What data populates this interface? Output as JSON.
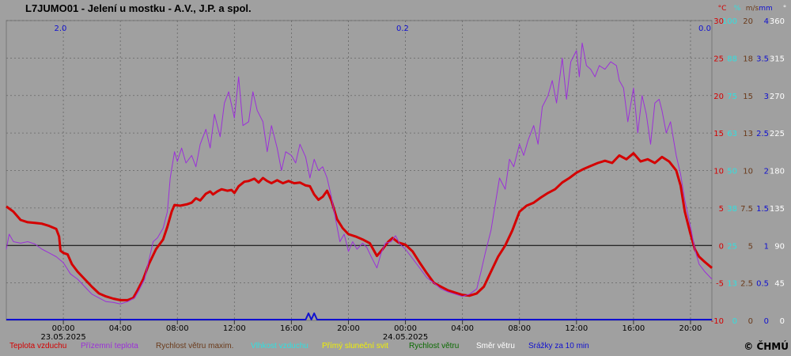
{
  "title": "L7JUMO01 - Jelení u mostku - A.V., J.P. a spol.",
  "credit": "© ČHMÚ",
  "colors": {
    "background": "#a0a0a0",
    "grid": "#666666",
    "zero_line": "#000000",
    "temperature": "#d40000",
    "ground_temperature": "#9b30d8",
    "wind_max": "#6a3a1a",
    "humidity": "#30e0e0",
    "sunshine": "#f0f000",
    "wind_speed": "#0a6a00",
    "wind_dir": "#ffffff",
    "precip": "#1010d0"
  },
  "chart_data": {
    "type": "line",
    "title": "L7JUMO01 - Jelení u mostku - A.V., J.P. a spol.",
    "x_axis": {
      "tick_labels": [
        "00:00",
        "04:00",
        "08:00",
        "12:00",
        "16:00",
        "20:00",
        "00:00",
        "04:00",
        "08:00",
        "12:00",
        "16:00",
        "20:00"
      ],
      "tick_hours": [
        0,
        4,
        8,
        12,
        16,
        20,
        24,
        28,
        32,
        36,
        40,
        44
      ],
      "date_labels": [
        {
          "hour": 0,
          "text": "23.05.2025"
        },
        {
          "hour": 24,
          "text": "24.05.2025"
        }
      ],
      "range_hours": [
        -4,
        45.5
      ]
    },
    "y_axes": [
      {
        "unit": "°C",
        "color": "#d40000",
        "ticks": [
          30,
          25,
          20,
          15,
          10,
          5,
          0,
          -5,
          -10
        ]
      },
      {
        "unit": "%",
        "color": "#30e0e0",
        "ticks": [
          100,
          88,
          75,
          63,
          50,
          38,
          25,
          13,
          0
        ]
      },
      {
        "unit": "m/s",
        "color": "#6a3a1a",
        "ticks": [
          20,
          18,
          15,
          13,
          10,
          7.5,
          5,
          2.5,
          0
        ]
      },
      {
        "unit": "mm",
        "color": "#1010d0",
        "ticks": [
          4,
          3.5,
          3,
          2.5,
          2,
          1.5,
          1,
          0.5,
          0
        ]
      },
      {
        "unit": "°",
        "color": "#ffffff",
        "ticks": [
          360,
          315,
          270,
          225,
          180,
          135,
          90,
          45,
          0
        ]
      }
    ],
    "ylim": [
      -10,
      30
    ],
    "precip_totals": [
      {
        "hour": -0.2,
        "text": "2.0"
      },
      {
        "hour": 23.8,
        "text": "0.2"
      },
      {
        "hour": 45,
        "text": "0.0"
      }
    ],
    "series": [
      {
        "name": "Teplota vzduchu",
        "color": "#d40000",
        "points": [
          [
            -4,
            5.2
          ],
          [
            -3.5,
            4.5
          ],
          [
            -3,
            3.4
          ],
          [
            -2.5,
            3.1
          ],
          [
            -2,
            3.0
          ],
          [
            -1.5,
            2.9
          ],
          [
            -1,
            2.6
          ],
          [
            -0.5,
            2.2
          ],
          [
            -0.3,
            1.2
          ],
          [
            -0.2,
            -0.7
          ],
          [
            0,
            -1.0
          ],
          [
            0.3,
            -1.2
          ],
          [
            0.6,
            -2.5
          ],
          [
            1,
            -3.5
          ],
          [
            1.5,
            -4.5
          ],
          [
            2,
            -5.5
          ],
          [
            2.5,
            -6.4
          ],
          [
            3,
            -6.8
          ],
          [
            3.5,
            -7.1
          ],
          [
            4,
            -7.3
          ],
          [
            4.5,
            -7.3
          ],
          [
            4.9,
            -7.0
          ],
          [
            5.2,
            -6.0
          ],
          [
            5.6,
            -4.5
          ],
          [
            6,
            -2.5
          ],
          [
            6.5,
            -0.5
          ],
          [
            7,
            0.8
          ],
          [
            7.3,
            2.5
          ],
          [
            7.6,
            4.5
          ],
          [
            7.8,
            5.4
          ],
          [
            8.2,
            5.3
          ],
          [
            8.7,
            5.5
          ],
          [
            9,
            5.7
          ],
          [
            9.3,
            6.3
          ],
          [
            9.6,
            6.0
          ],
          [
            10,
            6.9
          ],
          [
            10.3,
            7.2
          ],
          [
            10.5,
            6.8
          ],
          [
            10.8,
            7.2
          ],
          [
            11.1,
            7.5
          ],
          [
            11.5,
            7.3
          ],
          [
            11.8,
            7.4
          ],
          [
            12,
            7.0
          ],
          [
            12.3,
            7.9
          ],
          [
            12.7,
            8.5
          ],
          [
            13,
            8.6
          ],
          [
            13.4,
            8.9
          ],
          [
            13.7,
            8.4
          ],
          [
            14,
            9.0
          ],
          [
            14.3,
            8.6
          ],
          [
            14.6,
            8.3
          ],
          [
            15,
            8.7
          ],
          [
            15.4,
            8.3
          ],
          [
            15.8,
            8.6
          ],
          [
            16.2,
            8.3
          ],
          [
            16.6,
            8.4
          ],
          [
            17,
            8.0
          ],
          [
            17.3,
            7.9
          ],
          [
            17.6,
            6.8
          ],
          [
            17.9,
            6.1
          ],
          [
            18.2,
            6.5
          ],
          [
            18.5,
            7.3
          ],
          [
            18.8,
            6.0
          ],
          [
            19.2,
            3.5
          ],
          [
            19.6,
            2.3
          ],
          [
            20,
            1.5
          ],
          [
            20.5,
            1.2
          ],
          [
            21,
            0.8
          ],
          [
            21.5,
            0.3
          ],
          [
            22,
            -1.4
          ],
          [
            22.4,
            -0.5
          ],
          [
            22.8,
            0.5
          ],
          [
            23.1,
            1.0
          ],
          [
            23.5,
            0.4
          ],
          [
            24,
            0.1
          ],
          [
            24.5,
            -0.8
          ],
          [
            25,
            -2.3
          ],
          [
            25.5,
            -3.7
          ],
          [
            26,
            -5.0
          ],
          [
            26.5,
            -5.5
          ],
          [
            27,
            -6.0
          ],
          [
            27.5,
            -6.3
          ],
          [
            28,
            -6.6
          ],
          [
            28.5,
            -6.7
          ],
          [
            29,
            -6.4
          ],
          [
            29.5,
            -5.5
          ],
          [
            30,
            -3.5
          ],
          [
            30.5,
            -1.5
          ],
          [
            31,
            0.0
          ],
          [
            31.5,
            2.0
          ],
          [
            32,
            4.5
          ],
          [
            32.5,
            5.3
          ],
          [
            33,
            5.7
          ],
          [
            33.5,
            6.4
          ],
          [
            34,
            7.0
          ],
          [
            34.5,
            7.5
          ],
          [
            35,
            8.4
          ],
          [
            35.5,
            9.0
          ],
          [
            36,
            9.7
          ],
          [
            36.5,
            10.2
          ],
          [
            37,
            10.6
          ],
          [
            37.5,
            11.0
          ],
          [
            38,
            11.3
          ],
          [
            38.5,
            11.0
          ],
          [
            39,
            12.0
          ],
          [
            39.5,
            11.5
          ],
          [
            40,
            12.3
          ],
          [
            40.5,
            11.2
          ],
          [
            41,
            11.5
          ],
          [
            41.5,
            11.0
          ],
          [
            42,
            11.8
          ],
          [
            42.5,
            11.2
          ],
          [
            43,
            10.0
          ],
          [
            43.3,
            8.0
          ],
          [
            43.6,
            4.5
          ],
          [
            44,
            1.5
          ],
          [
            44.3,
            -0.5
          ],
          [
            44.6,
            -1.5
          ],
          [
            45,
            -2.2
          ],
          [
            45.5,
            -3.0
          ]
        ]
      },
      {
        "name": "Přízemní teplota",
        "color": "#9b30d8",
        "points": [
          [
            -4,
            -0.5
          ],
          [
            -3.8,
            1.5
          ],
          [
            -3.5,
            0.5
          ],
          [
            -3,
            0.3
          ],
          [
            -2.5,
            0.5
          ],
          [
            -2,
            0.2
          ],
          [
            -1.5,
            -0.5
          ],
          [
            -1,
            -1.0
          ],
          [
            -0.5,
            -1.5
          ],
          [
            0,
            -2.3
          ],
          [
            0.5,
            -3.8
          ],
          [
            1,
            -4.5
          ],
          [
            1.5,
            -5.5
          ],
          [
            2,
            -6.5
          ],
          [
            2.5,
            -7.0
          ],
          [
            3,
            -7.5
          ],
          [
            3.5,
            -7.6
          ],
          [
            4,
            -7.8
          ],
          [
            4.5,
            -7.5
          ],
          [
            5,
            -7.0
          ],
          [
            5.3,
            -6.0
          ],
          [
            5.7,
            -4.5
          ],
          [
            6,
            -2.0
          ],
          [
            6.3,
            0.5
          ],
          [
            6.6,
            1.0
          ],
          [
            7,
            2.3
          ],
          [
            7.3,
            4.5
          ],
          [
            7.5,
            9.0
          ],
          [
            7.8,
            12.5
          ],
          [
            8,
            11.2
          ],
          [
            8.3,
            13.0
          ],
          [
            8.6,
            11.0
          ],
          [
            9,
            12.0
          ],
          [
            9.3,
            10.5
          ],
          [
            9.6,
            13.5
          ],
          [
            10,
            15.5
          ],
          [
            10.3,
            13.0
          ],
          [
            10.6,
            17.5
          ],
          [
            11,
            14.5
          ],
          [
            11.3,
            19.0
          ],
          [
            11.6,
            20.5
          ],
          [
            12,
            17.0
          ],
          [
            12.3,
            22.5
          ],
          [
            12.6,
            16.0
          ],
          [
            13,
            16.5
          ],
          [
            13.3,
            20.5
          ],
          [
            13.6,
            18.0
          ],
          [
            14,
            16.5
          ],
          [
            14.3,
            12.5
          ],
          [
            14.6,
            16.0
          ],
          [
            15,
            13.0
          ],
          [
            15.3,
            10.0
          ],
          [
            15.6,
            12.5
          ],
          [
            16,
            12.0
          ],
          [
            16.3,
            11.0
          ],
          [
            16.6,
            13.5
          ],
          [
            17,
            11.8
          ],
          [
            17.3,
            9.0
          ],
          [
            17.6,
            11.5
          ],
          [
            17.9,
            10.0
          ],
          [
            18.2,
            10.5
          ],
          [
            18.5,
            9.0
          ],
          [
            18.8,
            6.5
          ],
          [
            19.1,
            3.5
          ],
          [
            19.4,
            0.5
          ],
          [
            19.7,
            1.5
          ],
          [
            20,
            -0.8
          ],
          [
            20.3,
            0.5
          ],
          [
            20.6,
            -0.5
          ],
          [
            21,
            0.3
          ],
          [
            21.3,
            -0.3
          ],
          [
            21.6,
            -1.5
          ],
          [
            22,
            -3.0
          ],
          [
            22.3,
            -1.0
          ],
          [
            22.6,
            0.3
          ],
          [
            23,
            0.5
          ],
          [
            23.3,
            1.3
          ],
          [
            23.6,
            0.2
          ],
          [
            24,
            -0.5
          ],
          [
            24.4,
            -1.5
          ],
          [
            25,
            -3.0
          ],
          [
            25.5,
            -4.3
          ],
          [
            26,
            -5.0
          ],
          [
            26.5,
            -5.8
          ],
          [
            27,
            -6.2
          ],
          [
            27.5,
            -6.5
          ],
          [
            28,
            -6.8
          ],
          [
            28.5,
            -6.5
          ],
          [
            29,
            -5.8
          ],
          [
            29.3,
            -3.5
          ],
          [
            29.6,
            -1.0
          ],
          [
            30,
            2.0
          ],
          [
            30.3,
            5.5
          ],
          [
            30.6,
            9.0
          ],
          [
            31,
            7.5
          ],
          [
            31.3,
            11.5
          ],
          [
            31.6,
            10.5
          ],
          [
            32,
            13.5
          ],
          [
            32.3,
            12.0
          ],
          [
            32.6,
            14.0
          ],
          [
            33,
            16.0
          ],
          [
            33.3,
            13.5
          ],
          [
            33.6,
            18.5
          ],
          [
            34,
            20.0
          ],
          [
            34.3,
            22.0
          ],
          [
            34.6,
            19.0
          ],
          [
            35,
            25.0
          ],
          [
            35.3,
            19.5
          ],
          [
            35.6,
            24.5
          ],
          [
            36,
            26.0
          ],
          [
            36.2,
            22.5
          ],
          [
            36.4,
            27.0
          ],
          [
            36.7,
            24.0
          ],
          [
            37,
            23.5
          ],
          [
            37.3,
            22.5
          ],
          [
            37.6,
            24.0
          ],
          [
            38,
            23.5
          ],
          [
            38.4,
            24.5
          ],
          [
            38.8,
            24.0
          ],
          [
            39,
            22.0
          ],
          [
            39.3,
            21.0
          ],
          [
            39.6,
            16.5
          ],
          [
            40,
            21.0
          ],
          [
            40.3,
            15.0
          ],
          [
            40.6,
            20.0
          ],
          [
            40.9,
            17.5
          ],
          [
            41.2,
            13.5
          ],
          [
            41.5,
            19.0
          ],
          [
            41.8,
            19.5
          ],
          [
            42,
            18.0
          ],
          [
            42.3,
            15.0
          ],
          [
            42.6,
            16.5
          ],
          [
            43,
            12.0
          ],
          [
            43.3,
            9.5
          ],
          [
            43.6,
            6.0
          ],
          [
            44,
            2.5
          ],
          [
            44.3,
            -0.5
          ],
          [
            44.6,
            -2.5
          ],
          [
            45,
            -3.5
          ],
          [
            45.5,
            -4.5
          ]
        ]
      },
      {
        "name": "Srážky za 10 min",
        "color": "#1010d0",
        "points": [
          [
            -4,
            0
          ],
          [
            17,
            0
          ],
          [
            17.2,
            0.2
          ],
          [
            17.4,
            0
          ],
          [
            17.6,
            0.2
          ],
          [
            17.8,
            0
          ],
          [
            45.5,
            0
          ]
        ]
      },
      {
        "name": "Rychlost větru maxim.",
        "color": "#6a3a1a",
        "points": []
      },
      {
        "name": "Vlhkost vzduchu",
        "color": "#30e0e0",
        "points": []
      },
      {
        "name": "Přímý sluneční svit",
        "color": "#f0f000",
        "points": []
      },
      {
        "name": "Rychlost větru",
        "color": "#0a6a00",
        "points": []
      },
      {
        "name": "Směr větru",
        "color": "#ffffff",
        "points": []
      }
    ],
    "grid": true
  }
}
